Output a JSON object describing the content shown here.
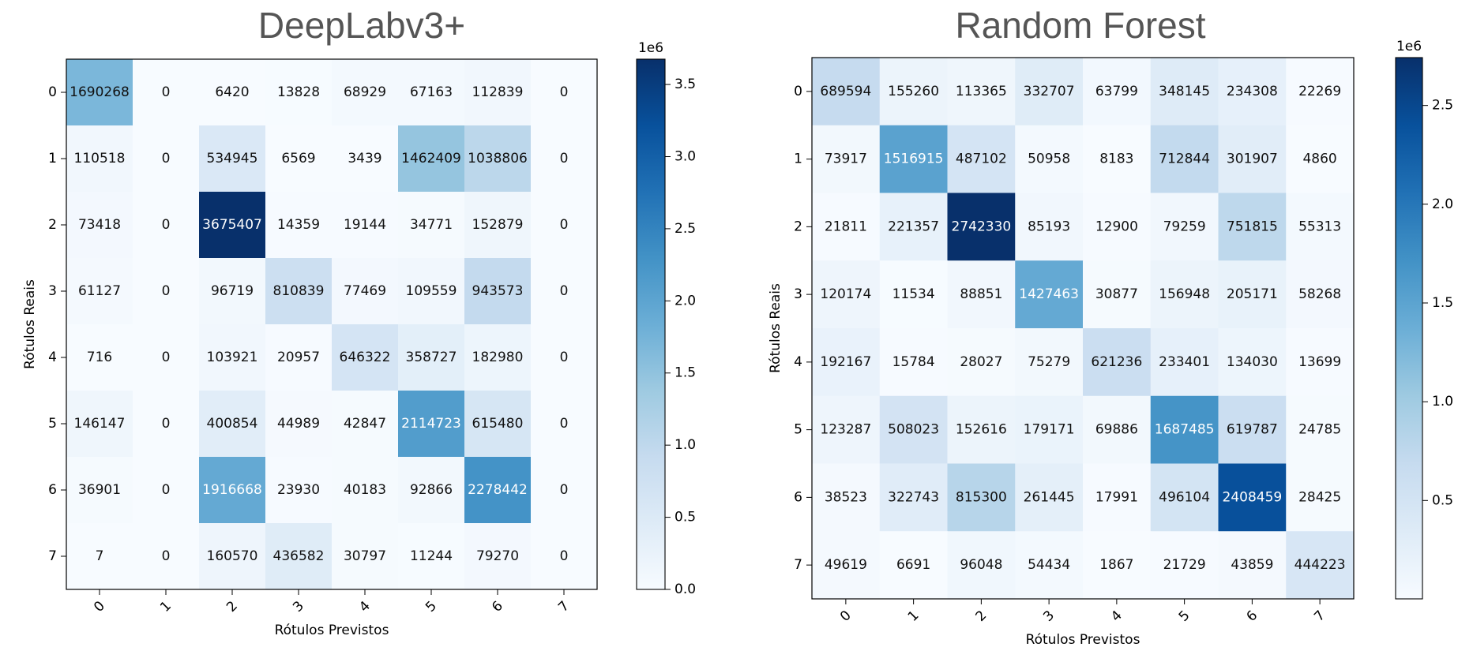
{
  "chart_data": [
    {
      "type": "heatmap",
      "title": "DeepLabv3+",
      "xlabel": "Rótulos Previstos",
      "ylabel": "Rótulos Reais",
      "x_ticks": [
        "0",
        "1",
        "2",
        "3",
        "4",
        "5",
        "6",
        "7"
      ],
      "y_ticks": [
        "0",
        "1",
        "2",
        "3",
        "4",
        "5",
        "6",
        "7"
      ],
      "matrix": [
        [
          1690268,
          0,
          6420,
          13828,
          68929,
          67163,
          112839,
          0
        ],
        [
          110518,
          0,
          534945,
          6569,
          3439,
          1462409,
          1038806,
          0
        ],
        [
          73418,
          0,
          3675407,
          14359,
          19144,
          34771,
          152879,
          0
        ],
        [
          61127,
          0,
          96719,
          810839,
          77469,
          109559,
          943573,
          0
        ],
        [
          716,
          0,
          103921,
          20957,
          646322,
          358727,
          182980,
          0
        ],
        [
          146147,
          0,
          400854,
          44989,
          42847,
          2114723,
          615480,
          0
        ],
        [
          36901,
          0,
          1916668,
          23930,
          40183,
          92866,
          2278442,
          0
        ],
        [
          7,
          0,
          160570,
          436582,
          30797,
          11244,
          79270,
          0
        ]
      ],
      "colorbar": {
        "range": [
          0,
          3675407
        ],
        "ticks": [
          0,
          500000,
          1000000,
          1500000,
          2000000,
          2500000,
          3000000,
          3500000
        ],
        "tick_labels": [
          "0.0",
          "0.5",
          "1.0",
          "1.5",
          "2.0",
          "2.5",
          "3.0",
          "3.5"
        ],
        "scale_label": "1e6"
      },
      "colormap": "Blues"
    },
    {
      "type": "heatmap",
      "title": "Random Forest",
      "xlabel": "Rótulos Previstos",
      "ylabel": "Rótulos Reais",
      "x_ticks": [
        "0",
        "1",
        "2",
        "3",
        "4",
        "5",
        "6",
        "7"
      ],
      "y_ticks": [
        "0",
        "1",
        "2",
        "3",
        "4",
        "5",
        "6",
        "7"
      ],
      "matrix": [
        [
          689594,
          155260,
          113365,
          332707,
          63799,
          348145,
          234308,
          22269
        ],
        [
          73917,
          1516915,
          487102,
          50958,
          8183,
          712844,
          301907,
          4860
        ],
        [
          21811,
          221357,
          2742330,
          85193,
          12900,
          79259,
          751815,
          55313
        ],
        [
          120174,
          11534,
          88851,
          1427463,
          30877,
          156948,
          205171,
          58268
        ],
        [
          192167,
          15784,
          28027,
          75279,
          621236,
          233401,
          134030,
          13699
        ],
        [
          123287,
          508023,
          152616,
          179171,
          69886,
          1687485,
          619787,
          24785
        ],
        [
          38523,
          322743,
          815300,
          261445,
          17991,
          496104,
          2408459,
          28425
        ],
        [
          49619,
          6691,
          96048,
          54434,
          1867,
          21729,
          43859,
          444223
        ]
      ],
      "colorbar": {
        "range": [
          1867,
          2742330
        ],
        "ticks": [
          500000,
          1000000,
          1500000,
          2000000,
          2500000
        ],
        "tick_labels": [
          "0.5",
          "1.0",
          "1.5",
          "2.0",
          "2.5"
        ],
        "scale_label": "1e6"
      },
      "colormap": "Blues"
    }
  ]
}
